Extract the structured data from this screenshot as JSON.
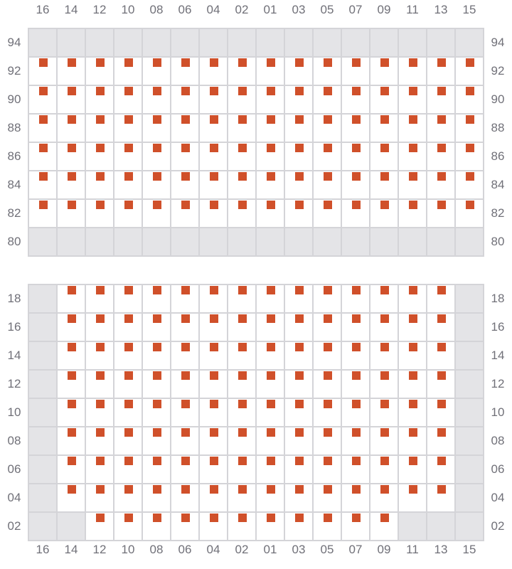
{
  "columns": [
    "16",
    "14",
    "12",
    "10",
    "08",
    "06",
    "04",
    "02",
    "01",
    "03",
    "05",
    "07",
    "09",
    "11",
    "13",
    "15"
  ],
  "colors": {
    "seat": "#d0502a",
    "blocked": "#e4e4e7",
    "grid_line": "#d4d4d8"
  },
  "sections": [
    {
      "name": "upper",
      "rows": [
        {
          "label": "94",
          "cells": "xxxxxxxxxxxxxxxx"
        },
        {
          "label": "92",
          "cells": "ssssssssssssssss"
        },
        {
          "label": "90",
          "cells": "ssssssssssssssss"
        },
        {
          "label": "88",
          "cells": "ssssssssssssssss"
        },
        {
          "label": "86",
          "cells": "ssssssssssssssss"
        },
        {
          "label": "84",
          "cells": "ssssssssssssssss"
        },
        {
          "label": "82",
          "cells": "ssssssssssssssss"
        },
        {
          "label": "80",
          "cells": "xxxxxxxxxxxxxxxx"
        }
      ]
    },
    {
      "name": "lower",
      "rows": [
        {
          "label": "18",
          "cells": "xssssssssssssssx"
        },
        {
          "label": "16",
          "cells": "xssssssssssssssx"
        },
        {
          "label": "14",
          "cells": "xssssssssssssssx"
        },
        {
          "label": "12",
          "cells": "xssssssssssssssx"
        },
        {
          "label": "10",
          "cells": "xssssssssssssssx"
        },
        {
          "label": "08",
          "cells": "xssssssssssssssx"
        },
        {
          "label": "06",
          "cells": "xssssssssssssssx"
        },
        {
          "label": "04",
          "cells": "xssssssssssssssx"
        },
        {
          "label": "02",
          "cells": "xxsssssssssssxxx"
        }
      ]
    }
  ]
}
